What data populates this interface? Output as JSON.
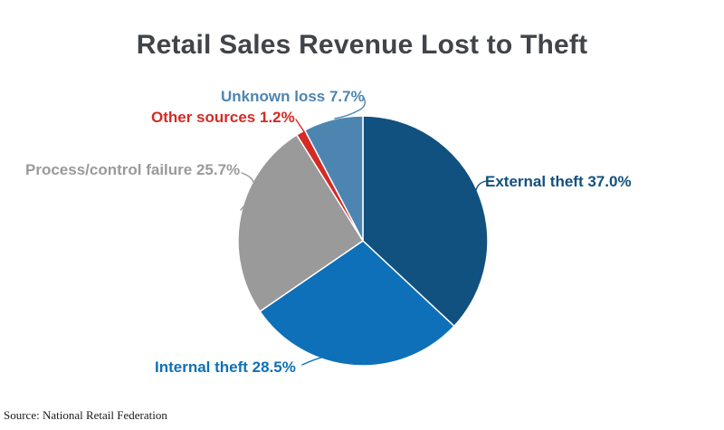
{
  "title": "Retail Sales Revenue Lost to Theft",
  "source_note": "Source: National Retail Federation",
  "chart_data": {
    "type": "pie",
    "title": "Retail Sales Revenue Lost to Theft",
    "start_angle_deg": 0,
    "direction": "clockwise",
    "legend_position": "none",
    "labels_style": "outside-callouts",
    "source_note": "Source: National Retail Federation",
    "title_color": "#414449",
    "slices": [
      {
        "id": "external-theft",
        "label": "External theft",
        "value": 37.0,
        "color": "#11517F",
        "label_text": "External theft 37.0%"
      },
      {
        "id": "internal-theft",
        "label": "Internal theft",
        "value": 28.5,
        "color": "#0E70B8",
        "label_text": "Internal theft 28.5%"
      },
      {
        "id": "process-control-failure",
        "label": "Process/control failure",
        "value": 25.7,
        "color": "#9A9A9A",
        "label_text": "Process/control failure 25.7%"
      },
      {
        "id": "other-sources",
        "label": "Other sources",
        "value": 1.2,
        "color": "#D42B24",
        "label_text": "Other sources 1.2%"
      },
      {
        "id": "unknown-loss",
        "label": "Unknown loss",
        "value": 7.7,
        "color": "#4D85B1",
        "label_text": "Unknown loss 7.7%"
      }
    ]
  }
}
